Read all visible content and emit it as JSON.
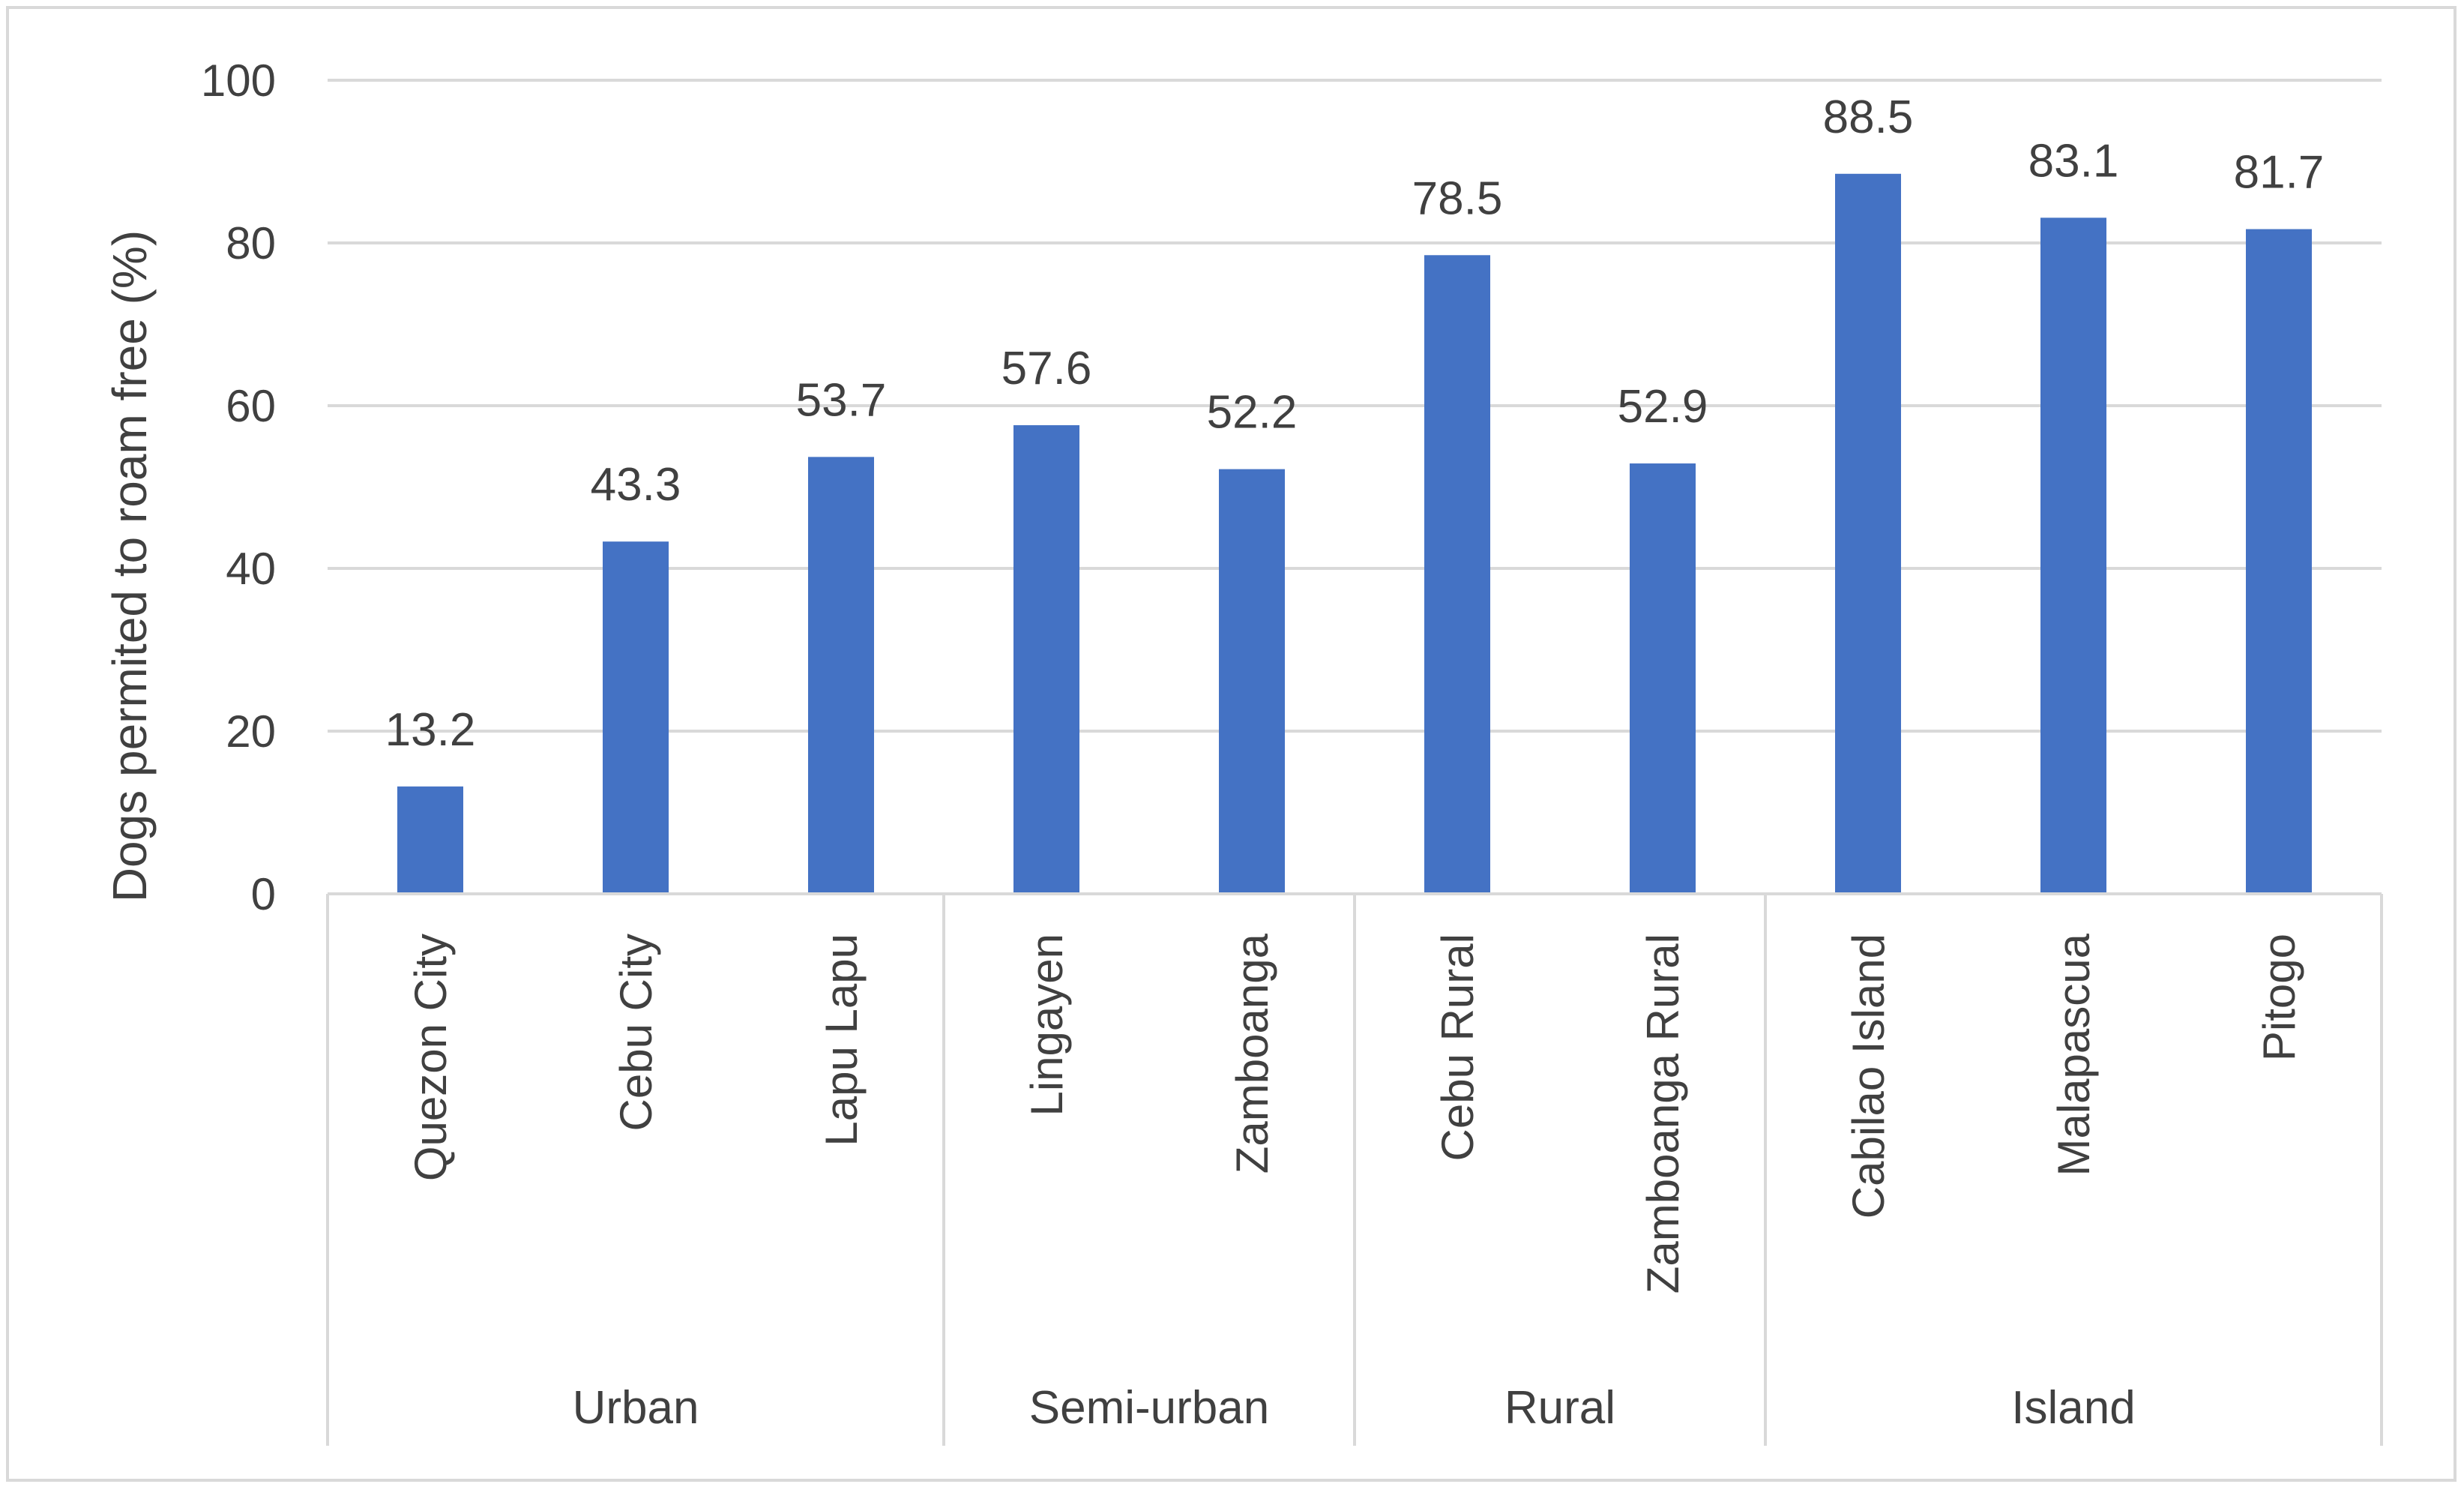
{
  "chart_data": {
    "type": "bar",
    "title": "",
    "xlabel": "",
    "ylabel": "Dogs permited to roam free (%)",
    "ylim": [
      0,
      100
    ],
    "yticks": [
      0,
      20,
      40,
      60,
      80,
      100
    ],
    "grid": true,
    "legend": "none",
    "colors": {
      "bar": "#4472C4",
      "grid": "#D9D9D9",
      "text": "#404040"
    },
    "categories": [
      "Quezon City",
      "Cebu City",
      "Lapu Lapu",
      "Lingayen",
      "Zamboanga",
      "Cebu Rural",
      "Zamboanga Rural",
      "Cabilao Island",
      "Malapascua",
      "Pitogo"
    ],
    "values": [
      13.2,
      43.3,
      53.7,
      57.6,
      52.2,
      78.5,
      52.9,
      88.5,
      83.1,
      81.7
    ],
    "data_labels": [
      "13.2",
      "43.3",
      "53.7",
      "57.6",
      "52.2",
      "78.5",
      "52.9",
      "88.5",
      "83.1",
      "81.7"
    ],
    "groups": [
      {
        "name": "Urban",
        "count": 3
      },
      {
        "name": "Semi-urban",
        "count": 2
      },
      {
        "name": "Rural",
        "count": 2
      },
      {
        "name": "Island",
        "count": 3
      }
    ]
  }
}
